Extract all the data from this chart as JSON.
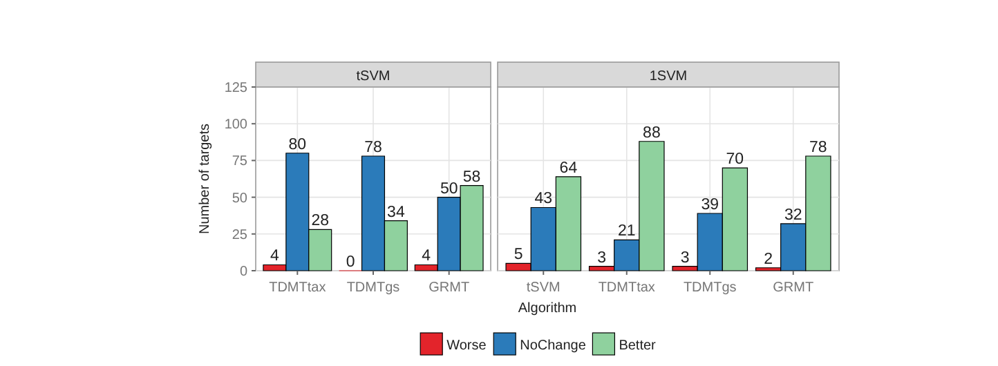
{
  "chart_data": [
    {
      "type": "bar",
      "title": "tSVM",
      "ylabel": "Number of targets",
      "categories": [
        "TDMTtax",
        "TDMTgs",
        "GRMT"
      ],
      "series": [
        {
          "name": "Worse",
          "color": "#e3242b",
          "values": [
            4,
            0,
            4
          ]
        },
        {
          "name": "NoChange",
          "color": "#2b7bba",
          "values": [
            80,
            78,
            50
          ]
        },
        {
          "name": "Better",
          "color": "#8fd19e",
          "values": [
            28,
            34,
            58
          ]
        }
      ],
      "ylim": [
        0,
        125
      ],
      "yticks": [
        0,
        25,
        50,
        75,
        100,
        125
      ],
      "grid": true,
      "data_labels": true,
      "legend": "bottom"
    },
    {
      "type": "bar",
      "title": "1SVM",
      "xlabel": "Algorithm",
      "categories": [
        "tSVM",
        "TDMTtax",
        "TDMTgs",
        "GRMT"
      ],
      "series": [
        {
          "color": "#e3242b",
          "values": [
            5,
            3,
            3,
            2
          ]
        },
        {
          "color": "#2b7bba",
          "values": [
            43,
            21,
            39,
            32
          ]
        },
        {
          "color": "#8fd19e",
          "values": [
            64,
            88,
            70,
            78
          ]
        }
      ],
      "ylim": [
        0,
        125
      ],
      "yticks": [
        0,
        25,
        50,
        75,
        100,
        125
      ],
      "grid": true,
      "data_labels": true,
      "tick_labels": "x"
    }
  ]
}
